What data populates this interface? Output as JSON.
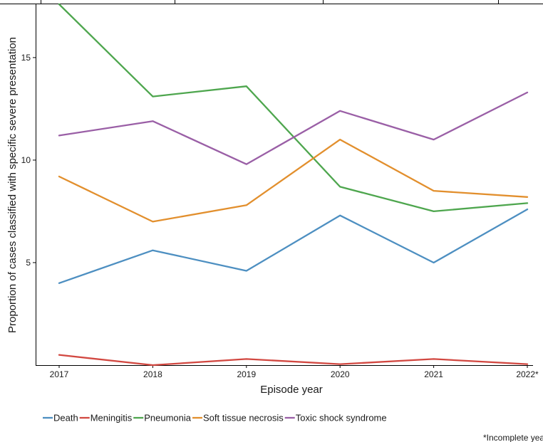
{
  "chart_data": {
    "type": "line",
    "xlabel": "Episode year",
    "ylabel": "Proportion of cases classified with specific severe presentation",
    "categories": [
      "2017",
      "2018",
      "2019",
      "2020",
      "2021",
      "2022*"
    ],
    "ylim": [
      0,
      17.6
    ],
    "yticks": [
      5,
      10,
      15
    ],
    "grid": false,
    "legend_position": "bottom-left",
    "series": [
      {
        "name": "Death",
        "color": "#4d8fc1",
        "values": [
          4.0,
          5.6,
          4.6,
          7.3,
          5.0,
          7.6
        ]
      },
      {
        "name": "Meningitis",
        "color": "#d24841",
        "values": [
          0.5,
          0.0,
          0.3,
          0.05,
          0.3,
          0.05
        ]
      },
      {
        "name": "Pneumonia",
        "color": "#4ea64e",
        "values": [
          17.6,
          13.1,
          13.6,
          8.7,
          7.5,
          7.9
        ]
      },
      {
        "name": "Soft tissue necrosis",
        "color": "#e28f2d",
        "values": [
          9.2,
          7.0,
          7.8,
          11.0,
          8.5,
          8.2
        ]
      },
      {
        "name": "Toxic shock syndrome",
        "color": "#9a5fa6",
        "values": [
          11.2,
          11.9,
          9.8,
          12.4,
          11.0,
          13.3
        ]
      }
    ],
    "note": "*Incomplete yea"
  }
}
